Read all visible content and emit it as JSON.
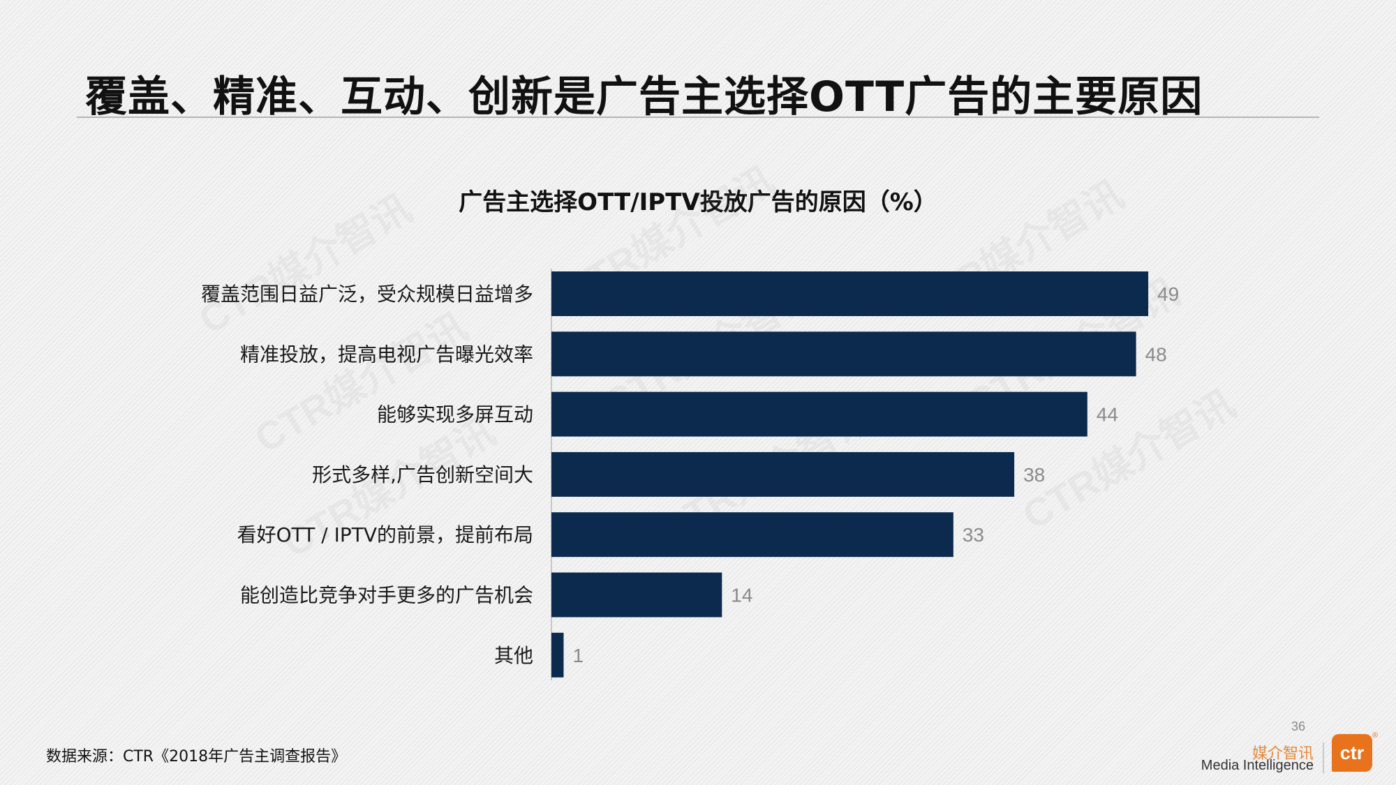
{
  "slide": {
    "title": "覆盖、精准、互动、创新是广告主选择OTT广告的主要原因",
    "source": "数据来源：CTR《2018年广告主调查报告》",
    "page_number": "36",
    "watermark": "CTR媒介智讯",
    "brand": {
      "cn": "媒介智讯",
      "en": "Media Intelligence",
      "logo_text": "ctr",
      "logo_reg": "®",
      "logo_color": "#e8731c"
    }
  },
  "chart_data": {
    "type": "bar",
    "orientation": "horizontal",
    "title": "广告主选择OTT/IPTV投放广告的原因（%）",
    "xlabel": "",
    "ylabel": "",
    "categories": [
      "覆盖范围日益广泛，受众规模日益增多",
      "精准投放，提高电视广告曝光效率",
      "能够实现多屏互动",
      "形式多样,广告创新空间大",
      "看好OTT / IPTV的前景，提前布局",
      "能创造比竞争对手更多的广告机会",
      "其他"
    ],
    "values": [
      49,
      48,
      44,
      38,
      33,
      14,
      1
    ],
    "xlim": [
      0,
      50
    ],
    "bar_color": "#0b2a4e",
    "grid": false,
    "legend": "none"
  }
}
